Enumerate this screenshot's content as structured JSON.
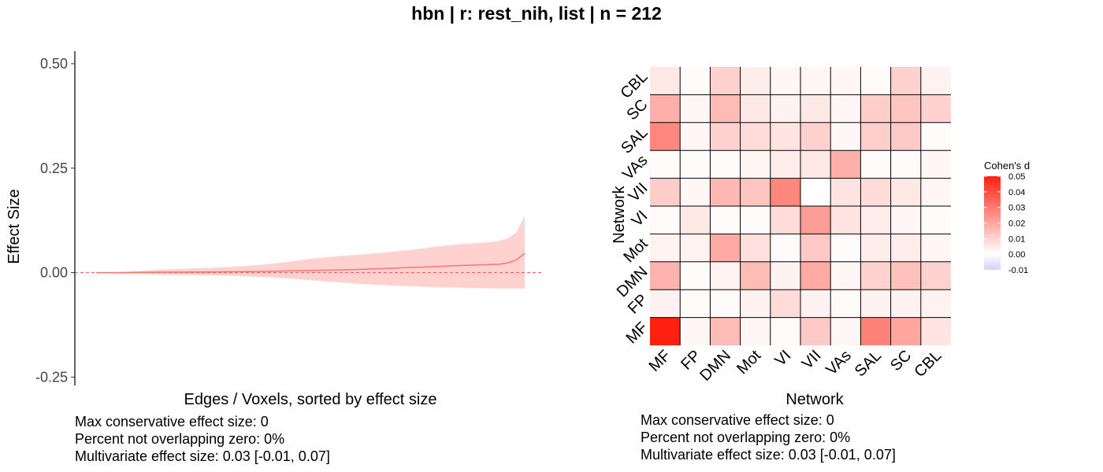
{
  "title": "hbn | r: rest_nih, list | n = 212",
  "chart_data": [
    {
      "type": "line",
      "xlabel": "Edges / Voxels, sorted by effect size",
      "ylabel": "Effect Size",
      "ylim": [
        -0.27,
        0.53
      ],
      "yticks": [
        0.5,
        0.25,
        0.0,
        -0.25
      ],
      "ytick_labels": [
        "0.50",
        "0.25",
        "0.00",
        "-0.25"
      ],
      "reference_line": 0,
      "x": [
        0,
        0.03,
        0.06,
        0.1,
        0.15,
        0.2,
        0.25,
        0.3,
        0.35,
        0.4,
        0.45,
        0.5,
        0.55,
        0.6,
        0.65,
        0.7,
        0.75,
        0.8,
        0.85,
        0.88,
        0.91,
        0.94,
        0.96,
        0.98,
        1.0
      ],
      "series": [
        {
          "estimate": [
            0,
            0,
            0,
            0.0005,
            0.001,
            0.0012,
            0.0015,
            0.002,
            0.0025,
            0.003,
            0.004,
            0.005,
            0.006,
            0.007,
            0.009,
            0.011,
            0.013,
            0.015,
            0.017,
            0.018,
            0.019,
            0.02,
            0.023,
            0.03,
            0.046
          ],
          "upper": [
            0,
            0.001,
            0.002,
            0.004,
            0.007,
            0.009,
            0.011,
            0.013,
            0.016,
            0.02,
            0.026,
            0.033,
            0.038,
            0.042,
            0.046,
            0.051,
            0.056,
            0.063,
            0.068,
            0.07,
            0.072,
            0.076,
            0.082,
            0.096,
            0.136
          ],
          "lower": [
            0,
            -0.001,
            -0.002,
            -0.003,
            -0.004,
            -0.005,
            -0.006,
            -0.007,
            -0.009,
            -0.011,
            -0.014,
            -0.018,
            -0.022,
            -0.026,
            -0.029,
            -0.031,
            -0.033,
            -0.035,
            -0.036,
            -0.037,
            -0.037,
            -0.038,
            -0.038,
            -0.038,
            -0.038
          ]
        }
      ],
      "colors": {
        "line": "#f8766d",
        "band": "#ffd2d0",
        "reference": "#e05a50"
      },
      "caption": [
        "Max conservative effect size: 0",
        "Percent not overlapping zero: 0%",
        "Multivariate effect size: 0.03 [-0.01, 0.07]"
      ]
    },
    {
      "type": "heatmap",
      "xlabel": "Network",
      "ylabel": "Network",
      "x_categories": [
        "MF",
        "FP",
        "DMN",
        "Mot",
        "VI",
        "VII",
        "VAs",
        "SAL",
        "SC",
        "CBL"
      ],
      "y_categories": [
        "MF",
        "FP",
        "DMN",
        "Mot",
        "VI",
        "VII",
        "VAs",
        "SAL",
        "SC",
        "CBL"
      ],
      "values": [
        [
          0.05,
          0.002,
          0.015,
          0.002,
          0.001,
          0.012,
          0.002,
          0.028,
          0.02,
          0.006
        ],
        [
          0.003,
          0.001,
          0.001,
          0.003,
          0.008,
          0.003,
          0.001,
          0.003,
          0.003,
          0.003
        ],
        [
          0.017,
          0.001,
          0.003,
          0.015,
          0.003,
          0.019,
          0.002,
          0.01,
          0.014,
          0.01
        ],
        [
          0.003,
          0.003,
          0.019,
          0.007,
          0.001,
          0.012,
          0.001,
          0.004,
          0.004,
          0.002
        ],
        [
          0.001,
          0.005,
          0.001,
          0.001,
          0.008,
          0.022,
          0.006,
          0.004,
          0.002,
          0.001
        ],
        [
          0.011,
          0.002,
          0.016,
          0.013,
          0.027,
          0.0,
          0.006,
          0.008,
          0.005,
          0.002
        ],
        [
          0.001,
          0.001,
          0.001,
          0.002,
          0.004,
          0.005,
          0.018,
          0.001,
          0.001,
          0.002
        ],
        [
          0.027,
          0.002,
          0.01,
          0.008,
          0.006,
          0.01,
          0.002,
          0.011,
          0.012,
          0.001
        ],
        [
          0.018,
          0.002,
          0.015,
          0.005,
          0.003,
          0.005,
          0.002,
          0.011,
          0.013,
          0.01
        ],
        [
          0.005,
          0.001,
          0.01,
          0.004,
          0.002,
          0.002,
          0.002,
          0.001,
          0.01,
          0.003
        ]
      ],
      "legend": {
        "title": "Cohen's d",
        "ticks": [
          0.05,
          0.04,
          0.03,
          0.02,
          0.01,
          0.0,
          -0.01
        ],
        "tick_labels": [
          "0.05",
          "0.04",
          "0.03",
          "0.02",
          "0.01",
          "0.00",
          "-0.01"
        ],
        "range": [
          -0.01,
          0.05
        ],
        "placement": "right"
      },
      "colors": {
        "high": "#ff2010",
        "mid": "#ffffff",
        "low": "#d8ccff",
        "grid": "#000000"
      },
      "caption": [
        "Max conservative effect size: 0",
        "Percent not overlapping zero: 0%",
        "Multivariate effect size: 0.03 [-0.01, 0.07]"
      ]
    }
  ]
}
